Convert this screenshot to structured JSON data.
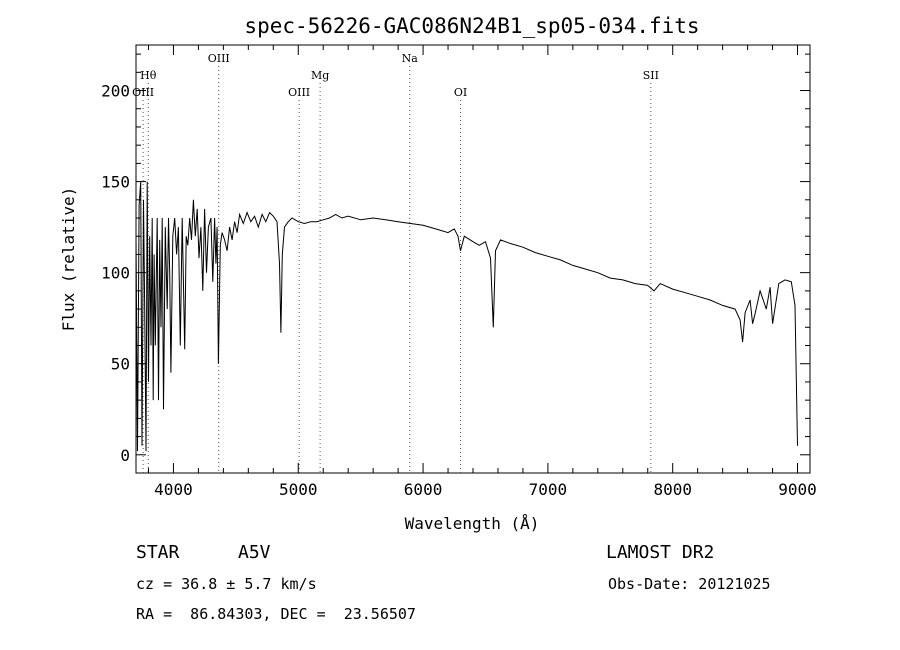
{
  "chart_data": {
    "type": "line",
    "title": "spec-56226-GAC086N24B1_sp05-034.fits",
    "xlabel": "Wavelength (Å)",
    "ylabel": "Flux (relative)",
    "xlim": [
      3700,
      9100
    ],
    "ylim": [
      -10,
      225
    ],
    "xticks": [
      4000,
      5000,
      6000,
      7000,
      8000,
      9000
    ],
    "xtick_labels": [
      "4000",
      "5000",
      "6000",
      "7000",
      "8000",
      "9000"
    ],
    "yticks": [
      0,
      50,
      100,
      150,
      200
    ],
    "ytick_labels": [
      "0",
      "50",
      "100",
      "150",
      "200"
    ],
    "grid": false,
    "spectral_lines": [
      {
        "label": "Hθ",
        "x": 3798,
        "row": "lower"
      },
      {
        "label": "OIII",
        "x": 3757,
        "row": "bottom"
      },
      {
        "label": "OIII",
        "x": 4363,
        "row": "top"
      },
      {
        "label": "OIII",
        "x": 5007,
        "row": "bottom"
      },
      {
        "label": "Mg",
        "x": 5175,
        "row": "lower"
      },
      {
        "label": "Na",
        "x": 5893,
        "row": "top"
      },
      {
        "label": "OI",
        "x": 6300,
        "row": "bottom"
      },
      {
        "label": "SII",
        "x": 7825,
        "row": "lower"
      }
    ],
    "series": [
      {
        "x": [
          3700,
          3712,
          3725,
          3738,
          3748,
          3760,
          3770,
          3780,
          3790,
          3800,
          3810,
          3820,
          3830,
          3838,
          3845,
          3855,
          3870,
          3880,
          3890,
          3900,
          3910,
          3920,
          3935,
          3950,
          3960,
          3970,
          3980,
          3995,
          4010,
          4025,
          4040,
          4055,
          4070,
          4090,
          4102,
          4115,
          4130,
          4145,
          4160,
          4175,
          4190,
          4205,
          4220,
          4235,
          4250,
          4265,
          4280,
          4300,
          4315,
          4330,
          4340,
          4350,
          4360,
          4375,
          4390,
          4410,
          4430,
          4450,
          4470,
          4490,
          4510,
          4530,
          4560,
          4590,
          4620,
          4650,
          4680,
          4710,
          4740,
          4770,
          4800,
          4830,
          4850,
          4861,
          4872,
          4890,
          4920,
          4950,
          5000,
          5050,
          5100,
          5150,
          5200,
          5250,
          5300,
          5350,
          5400,
          5500,
          5600,
          5700,
          5800,
          5900,
          6000,
          6100,
          6200,
          6250,
          6280,
          6300,
          6330,
          6400,
          6450,
          6500,
          6540,
          6563,
          6580,
          6620,
          6700,
          6800,
          6900,
          7000,
          7100,
          7200,
          7300,
          7400,
          7500,
          7600,
          7700,
          7800,
          7850,
          7900,
          8000,
          8100,
          8200,
          8300,
          8400,
          8500,
          8540,
          8560,
          8580,
          8620,
          8640,
          8662,
          8700,
          8750,
          8780,
          8800,
          8850,
          8900,
          8950,
          8980,
          9000
        ],
        "y": [
          120,
          2,
          137,
          150,
          5,
          140,
          80,
          2,
          150,
          40,
          120,
          60,
          130,
          30,
          110,
          60,
          130,
          30,
          118,
          70,
          130,
          25,
          125,
          80,
          130,
          100,
          45,
          120,
          130,
          110,
          125,
          60,
          130,
          58,
          120,
          115,
          130,
          118,
          140,
          120,
          135,
          108,
          125,
          90,
          135,
          100,
          125,
          130,
          95,
          130,
          105,
          125,
          50,
          115,
          122,
          118,
          112,
          125,
          118,
          128,
          122,
          132,
          127,
          133,
          128,
          131,
          125,
          132,
          128,
          133,
          131,
          128,
          105,
          67,
          110,
          125,
          128,
          130,
          128,
          127,
          128,
          128,
          129,
          130,
          132,
          130,
          131,
          129,
          130,
          129,
          128,
          127,
          126,
          124,
          122,
          124,
          120,
          112,
          120,
          117,
          115,
          117,
          108,
          70,
          112,
          118,
          116,
          114,
          111,
          109,
          107,
          104,
          102,
          100,
          97,
          96,
          94,
          93,
          90,
          94,
          91,
          89,
          87,
          85,
          82,
          80,
          74,
          62,
          78,
          85,
          72,
          78,
          90,
          80,
          92,
          72,
          94,
          96,
          95,
          82,
          5
        ]
      }
    ]
  },
  "info": {
    "object_type": "STAR",
    "subclass": "A5V",
    "survey": "LAMOST DR2",
    "redshift": "cz = 36.8 ± 5.7 km/s",
    "obs_date": "Obs-Date: 20121025",
    "coords": "RA =  86.84303, DEC =  23.56507"
  }
}
